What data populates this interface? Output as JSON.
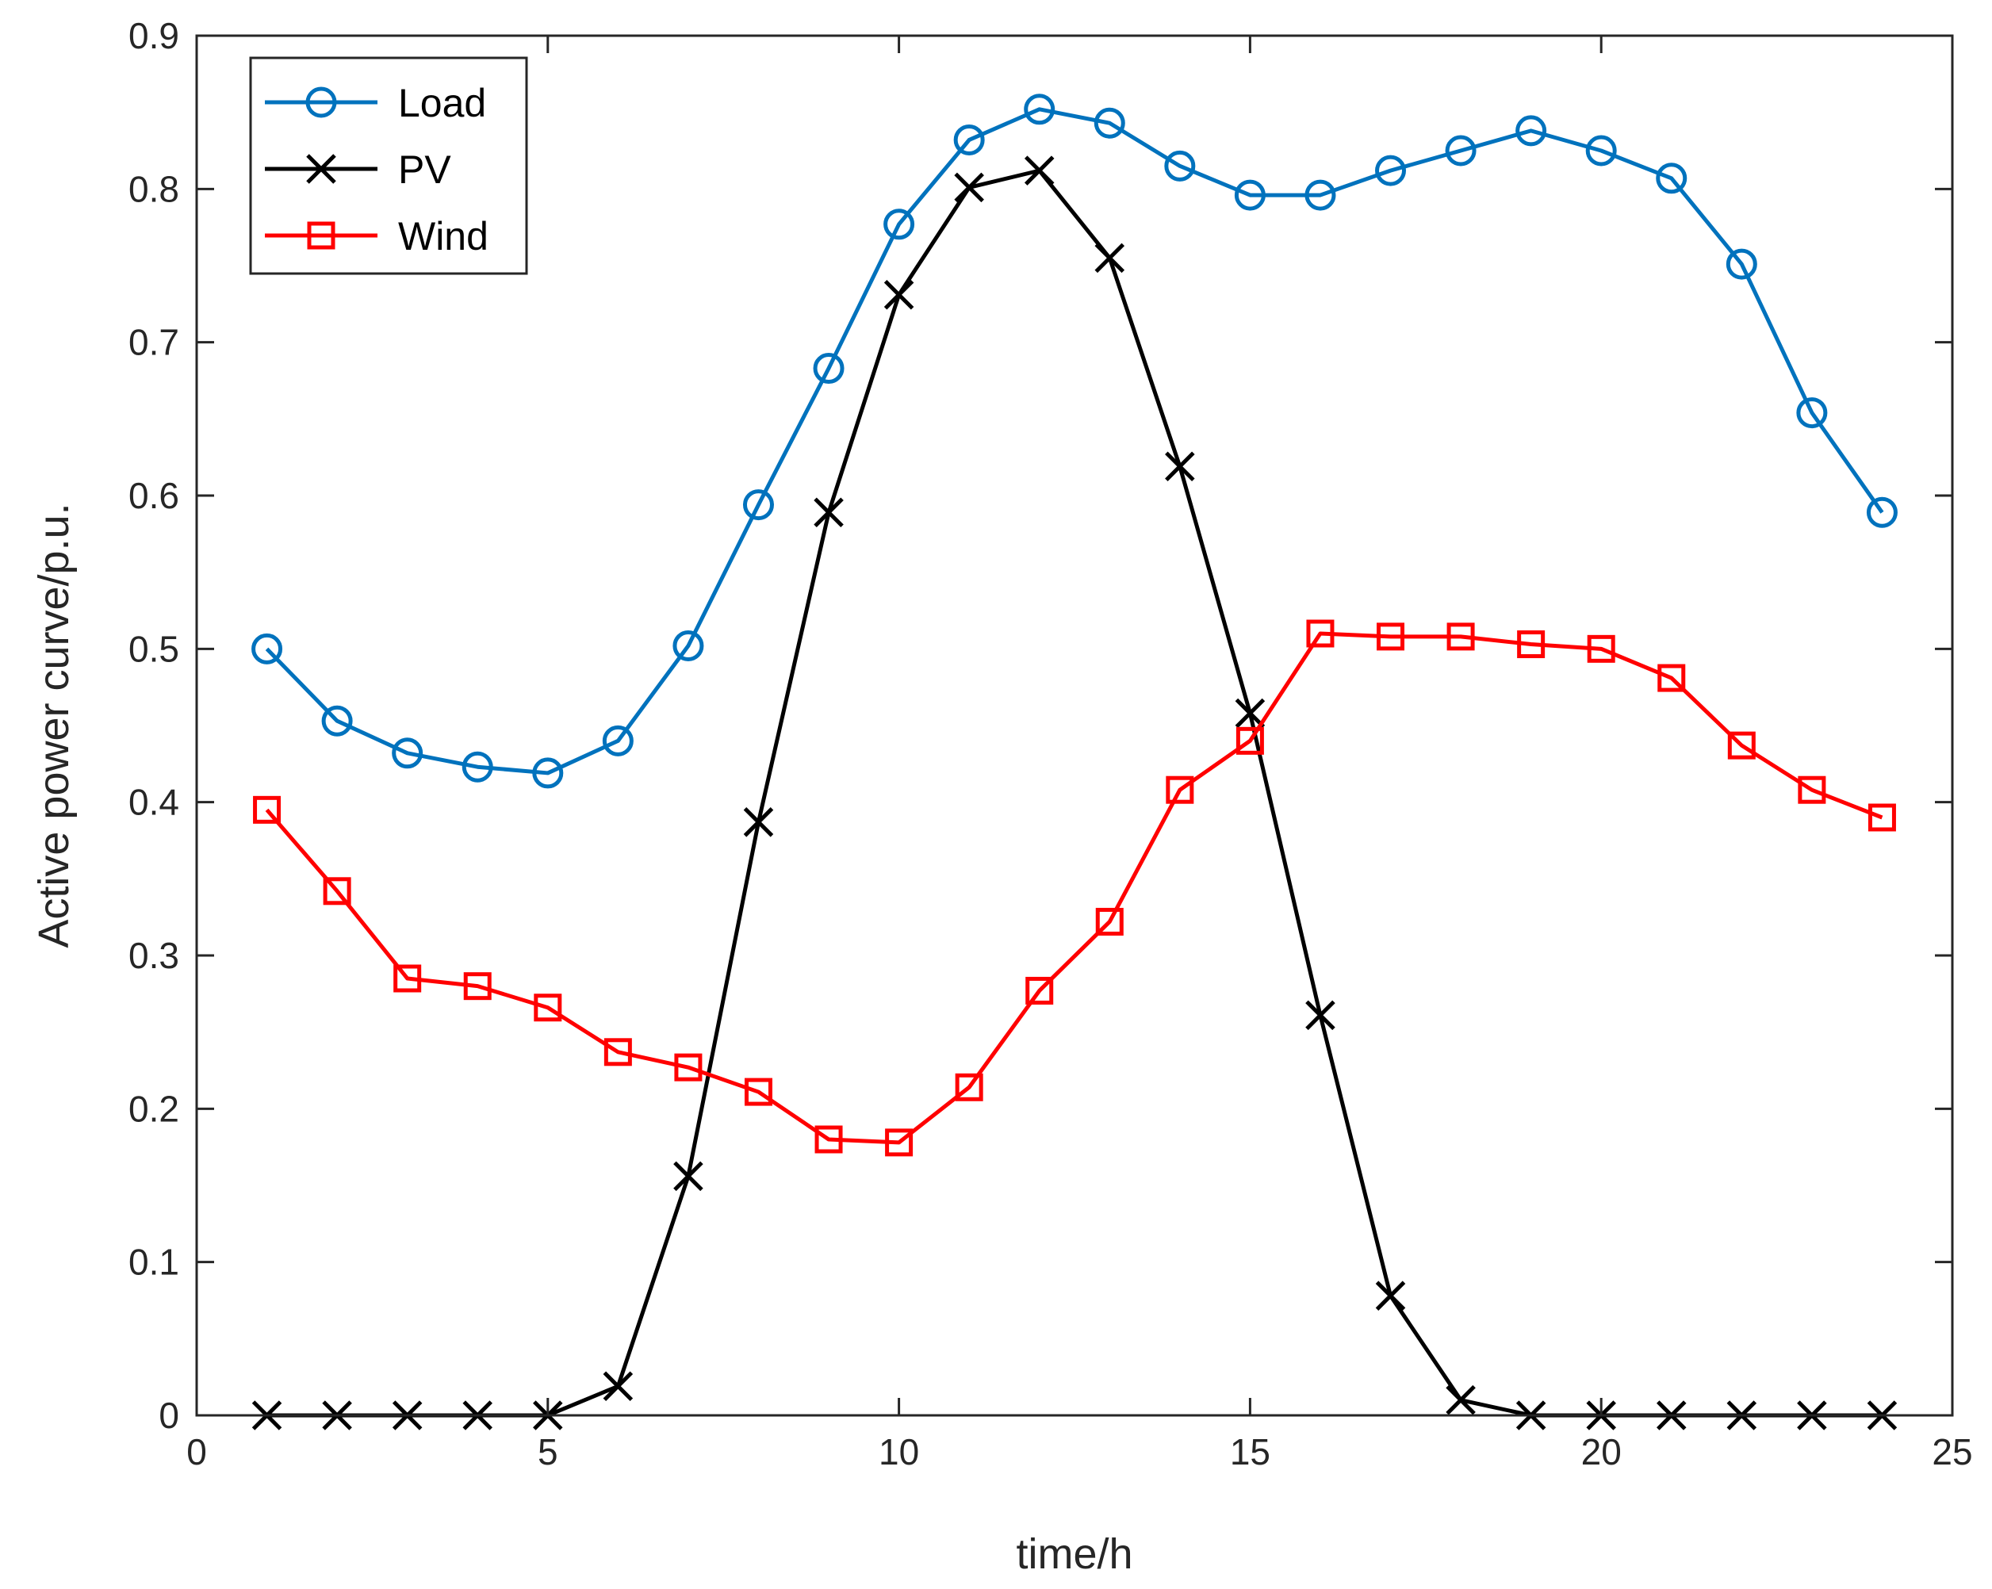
{
  "chart_data": {
    "type": "line",
    "title": "",
    "xlabel": "time/h",
    "ylabel": "Active power curve/p.u.",
    "xlim": [
      0,
      25
    ],
    "ylim": [
      0,
      0.9
    ],
    "xticks": [
      0,
      5,
      10,
      15,
      20,
      25
    ],
    "yticks": [
      0,
      0.1,
      0.2,
      0.3,
      0.4,
      0.5,
      0.6,
      0.7,
      0.8,
      0.9
    ],
    "grid": false,
    "legend_position": "top-left",
    "x": [
      1,
      2,
      3,
      4,
      5,
      6,
      7,
      8,
      9,
      10,
      11,
      12,
      13,
      14,
      15,
      16,
      17,
      18,
      19,
      20,
      21,
      22,
      23,
      24
    ],
    "series": [
      {
        "name": "Load",
        "color": "#0072BD",
        "marker": "circle",
        "values": [
          0.5,
          0.453,
          0.432,
          0.423,
          0.419,
          0.44,
          0.502,
          0.594,
          0.683,
          0.777,
          0.832,
          0.852,
          0.843,
          0.815,
          0.796,
          0.796,
          0.812,
          0.825,
          0.838,
          0.825,
          0.807,
          0.751,
          0.654,
          0.589
        ]
      },
      {
        "name": "PV",
        "color": "#000000",
        "marker": "x",
        "values": [
          0,
          0,
          0,
          0,
          0,
          0.019,
          0.156,
          0.387,
          0.589,
          0.731,
          0.801,
          0.812,
          0.755,
          0.619,
          0.458,
          0.261,
          0.078,
          0.01,
          0,
          0,
          0,
          0,
          0,
          0
        ]
      },
      {
        "name": "Wind",
        "color": "#FF0000",
        "marker": "square",
        "values": [
          0.395,
          0.342,
          0.285,
          0.28,
          0.266,
          0.237,
          0.227,
          0.211,
          0.18,
          0.178,
          0.214,
          0.277,
          0.322,
          0.408,
          0.44,
          0.51,
          0.508,
          0.508,
          0.503,
          0.5,
          0.481,
          0.437,
          0.408,
          0.39
        ]
      }
    ]
  }
}
